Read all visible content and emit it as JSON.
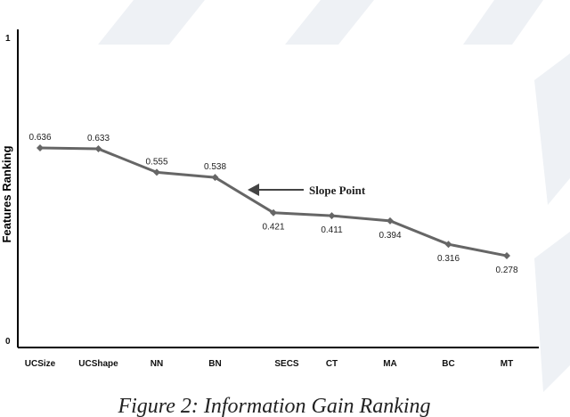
{
  "chart_data": {
    "type": "line",
    "categories": [
      "UCSize",
      "UCShape",
      "NN",
      "BN",
      "SECS",
      "CT",
      "MA",
      "BC",
      "MT"
    ],
    "values": [
      0.636,
      0.633,
      0.555,
      0.538,
      0.421,
      0.411,
      0.394,
      0.316,
      0.278
    ],
    "data_labels": [
      "0.636",
      "0.633",
      "0.555",
      "0.538",
      "0.421",
      "0.411",
      "0.394",
      "0.316",
      "0.278"
    ],
    "ylabel": "Features Ranking",
    "ylim": [
      0,
      1
    ],
    "yticks": [
      "0",
      "1"
    ],
    "annotation": {
      "text": "Slope Point",
      "points_to": "BN"
    },
    "grid": false,
    "legend": "none",
    "line_color": "#666666"
  },
  "caption": "Figure 2: Information Gain Ranking"
}
